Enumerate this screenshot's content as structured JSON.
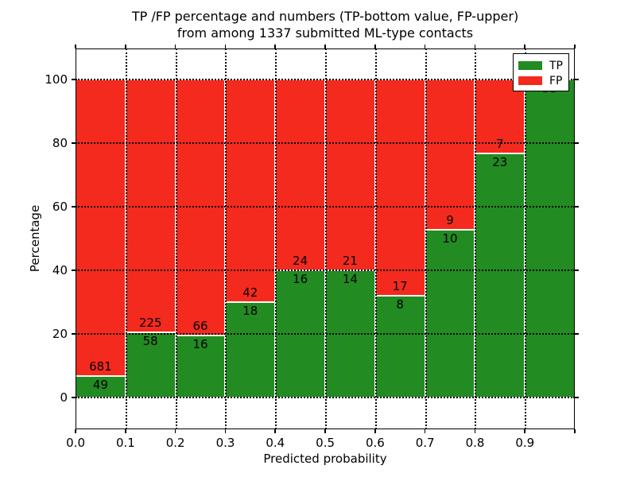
{
  "figure": {
    "title_line1": "TP /FP percentage and numbers (TP-bottom value, FP-upper)",
    "title_line2": "from among 1337 submitted ML-type contacts"
  },
  "axes": {
    "xlabel": "Predicted probability",
    "ylabel": "Percentage"
  },
  "legend": {
    "items": [
      {
        "label": "TP",
        "color": "#228B22"
      },
      {
        "label": "FP",
        "color": "#F42A1E"
      }
    ]
  },
  "chart_data": {
    "type": "bar",
    "subtype": "stacked-percentage",
    "title": "TP /FP percentage and numbers (TP-bottom value, FP-upper) from among 1337 submitted ML-type contacts",
    "xlabel": "Predicted probability",
    "ylabel": "Percentage",
    "total_contacts": 1337,
    "grid": true,
    "legend_position": "upper right",
    "xlim": [
      0.0,
      1.0
    ],
    "ylim": [
      -10,
      110
    ],
    "x_tick_labels": [
      "0.0",
      "0.1",
      "0.2",
      "0.3",
      "0.4",
      "0.5",
      "0.6",
      "0.7",
      "0.8",
      "0.9"
    ],
    "y_ticks": [
      0,
      20,
      40,
      60,
      80,
      100
    ],
    "y_tick_labels": [
      "0",
      "20",
      "40",
      "60",
      "80",
      "100"
    ],
    "categories": [
      "0.0-0.1",
      "0.1-0.2",
      "0.2-0.3",
      "0.3-0.4",
      "0.4-0.5",
      "0.5-0.6",
      "0.6-0.7",
      "0.7-0.8",
      "0.8-0.9",
      "0.9-1.0"
    ],
    "series": [
      {
        "name": "TP",
        "color": "#228B22",
        "values": [
          49,
          58,
          16,
          18,
          16,
          14,
          8,
          10,
          23,
          33
        ]
      },
      {
        "name": "FP",
        "color": "#F42A1E",
        "values": [
          681,
          225,
          66,
          42,
          24,
          21,
          17,
          9,
          7,
          0
        ]
      }
    ],
    "tp_percent": [
      6.7,
      20.5,
      19.5,
      30.0,
      40.0,
      40.0,
      32.0,
      52.6,
      76.7,
      100.0
    ]
  }
}
